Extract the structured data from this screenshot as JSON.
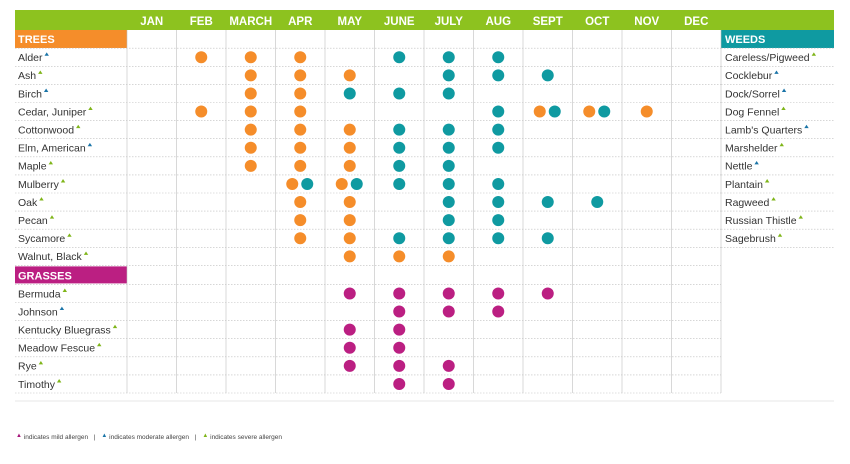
{
  "chart_data": {
    "type": "table",
    "title": "",
    "months": [
      "JAN",
      "FEB",
      "MARCH",
      "APR",
      "MAY",
      "JUNE",
      "JULY",
      "AUG",
      "SEPT",
      "OCT",
      "NOV",
      "DEC"
    ],
    "colors": {
      "header_green": "#8dc21f",
      "trees": "#f58d2a",
      "weeds": "#0f9aa1",
      "grasses": "#bb1f82",
      "mild": "#a5157a",
      "moderate": "#1b75a8",
      "severe": "#7fb519"
    },
    "trees": {
      "label": "TREES",
      "rows": [
        {
          "name": "Alder",
          "severity": "moderate",
          "dots": [
            {
              "m": "FEB",
              "c": "trees"
            },
            {
              "m": "MARCH",
              "c": "trees"
            },
            {
              "m": "APR",
              "c": "trees"
            },
            {
              "m": "JUNE",
              "c": "weeds"
            },
            {
              "m": "JULY",
              "c": "weeds"
            },
            {
              "m": "AUG",
              "c": "weeds"
            }
          ]
        },
        {
          "name": "Ash",
          "severity": "severe",
          "dots": [
            {
              "m": "MARCH",
              "c": "trees"
            },
            {
              "m": "APR",
              "c": "trees"
            },
            {
              "m": "MAY",
              "c": "trees"
            },
            {
              "m": "JULY",
              "c": "weeds"
            },
            {
              "m": "AUG",
              "c": "weeds"
            },
            {
              "m": "SEPT",
              "c": "weeds"
            }
          ]
        },
        {
          "name": "Birch",
          "severity": "moderate",
          "dots": [
            {
              "m": "MARCH",
              "c": "trees"
            },
            {
              "m": "APR",
              "c": "trees"
            },
            {
              "m": "MAY",
              "c": "weeds"
            },
            {
              "m": "JUNE",
              "c": "weeds"
            },
            {
              "m": "JULY",
              "c": "weeds"
            }
          ]
        },
        {
          "name": "Cedar, Juniper",
          "severity": "severe",
          "dots": [
            {
              "m": "FEB",
              "c": "trees"
            },
            {
              "m": "MARCH",
              "c": "trees"
            },
            {
              "m": "APR",
              "c": "trees"
            },
            {
              "m": "AUG",
              "c": "weeds"
            },
            {
              "m": "SEPT",
              "c": "trees",
              "o": -8
            },
            {
              "m": "SEPT",
              "c": "weeds",
              "o": 7
            },
            {
              "m": "OCT",
              "c": "trees",
              "o": -8
            },
            {
              "m": "OCT",
              "c": "weeds",
              "o": 7
            },
            {
              "m": "NOV",
              "c": "trees"
            }
          ]
        },
        {
          "name": "Cottonwood",
          "severity": "severe",
          "dots": [
            {
              "m": "MARCH",
              "c": "trees"
            },
            {
              "m": "APR",
              "c": "trees"
            },
            {
              "m": "MAY",
              "c": "trees"
            },
            {
              "m": "JUNE",
              "c": "weeds"
            },
            {
              "m": "JULY",
              "c": "weeds"
            },
            {
              "m": "AUG",
              "c": "weeds"
            }
          ]
        },
        {
          "name": "Elm, American",
          "severity": "moderate",
          "dots": [
            {
              "m": "MARCH",
              "c": "trees"
            },
            {
              "m": "APR",
              "c": "trees"
            },
            {
              "m": "MAY",
              "c": "trees"
            },
            {
              "m": "JUNE",
              "c": "weeds"
            },
            {
              "m": "JULY",
              "c": "weeds"
            },
            {
              "m": "AUG",
              "c": "weeds"
            }
          ]
        },
        {
          "name": "Maple",
          "severity": "severe",
          "dots": [
            {
              "m": "MARCH",
              "c": "trees"
            },
            {
              "m": "APR",
              "c": "trees"
            },
            {
              "m": "MAY",
              "c": "trees"
            },
            {
              "m": "JUNE",
              "c": "weeds"
            },
            {
              "m": "JULY",
              "c": "weeds"
            }
          ]
        },
        {
          "name": "Mulberry",
          "severity": "severe",
          "dots": [
            {
              "m": "APR",
              "c": "trees",
              "o": -8
            },
            {
              "m": "APR",
              "c": "weeds",
              "o": 7
            },
            {
              "m": "MAY",
              "c": "trees",
              "o": -8
            },
            {
              "m": "MAY",
              "c": "weeds",
              "o": 7
            },
            {
              "m": "JUNE",
              "c": "weeds"
            },
            {
              "m": "JULY",
              "c": "weeds"
            },
            {
              "m": "AUG",
              "c": "weeds"
            }
          ]
        },
        {
          "name": "Oak",
          "severity": "severe",
          "dots": [
            {
              "m": "APR",
              "c": "trees"
            },
            {
              "m": "MAY",
              "c": "trees"
            },
            {
              "m": "JULY",
              "c": "weeds"
            },
            {
              "m": "AUG",
              "c": "weeds"
            },
            {
              "m": "SEPT",
              "c": "weeds"
            },
            {
              "m": "OCT",
              "c": "weeds"
            }
          ]
        },
        {
          "name": "Pecan",
          "severity": "severe",
          "dots": [
            {
              "m": "APR",
              "c": "trees"
            },
            {
              "m": "MAY",
              "c": "trees"
            },
            {
              "m": "JULY",
              "c": "weeds"
            },
            {
              "m": "AUG",
              "c": "weeds"
            }
          ]
        },
        {
          "name": "Sycamore",
          "severity": "severe",
          "dots": [
            {
              "m": "APR",
              "c": "trees"
            },
            {
              "m": "MAY",
              "c": "trees"
            },
            {
              "m": "JUNE",
              "c": "weeds"
            },
            {
              "m": "JULY",
              "c": "weeds"
            },
            {
              "m": "AUG",
              "c": "weeds"
            },
            {
              "m": "SEPT",
              "c": "weeds"
            }
          ]
        },
        {
          "name": "Walnut, Black",
          "severity": "severe",
          "dots": [
            {
              "m": "MAY",
              "c": "trees"
            },
            {
              "m": "JUNE",
              "c": "trees"
            },
            {
              "m": "JULY",
              "c": "trees"
            }
          ]
        }
      ]
    },
    "grasses": {
      "label": "GRASSES",
      "rows": [
        {
          "name": "Bermuda",
          "severity": "severe",
          "dots": [
            {
              "m": "MAY",
              "c": "grasses"
            },
            {
              "m": "JUNE",
              "c": "grasses"
            },
            {
              "m": "JULY",
              "c": "grasses"
            },
            {
              "m": "AUG",
              "c": "grasses"
            },
            {
              "m": "SEPT",
              "c": "grasses"
            }
          ]
        },
        {
          "name": "Johnson",
          "severity": "moderate",
          "dots": [
            {
              "m": "JUNE",
              "c": "grasses"
            },
            {
              "m": "JULY",
              "c": "grasses"
            },
            {
              "m": "AUG",
              "c": "grasses"
            }
          ]
        },
        {
          "name": "Kentucky Bluegrass",
          "severity": "severe",
          "dots": [
            {
              "m": "MAY",
              "c": "grasses"
            },
            {
              "m": "JUNE",
              "c": "grasses"
            }
          ]
        },
        {
          "name": "Meadow Fescue",
          "severity": "severe",
          "dots": [
            {
              "m": "MAY",
              "c": "grasses"
            },
            {
              "m": "JUNE",
              "c": "grasses"
            }
          ]
        },
        {
          "name": "Rye",
          "severity": "severe",
          "dots": [
            {
              "m": "MAY",
              "c": "grasses"
            },
            {
              "m": "JUNE",
              "c": "grasses"
            },
            {
              "m": "JULY",
              "c": "grasses"
            }
          ]
        },
        {
          "name": "Timothy",
          "severity": "severe",
          "dots": [
            {
              "m": "JUNE",
              "c": "grasses"
            },
            {
              "m": "JULY",
              "c": "grasses"
            }
          ]
        }
      ]
    },
    "weeds": {
      "label": "WEEDS",
      "items": [
        {
          "name": "Careless/Pigweed",
          "severity": "severe"
        },
        {
          "name": "Cocklebur",
          "severity": "moderate"
        },
        {
          "name": "Dock/Sorrel",
          "severity": "moderate"
        },
        {
          "name": "Dog Fennel",
          "severity": "severe"
        },
        {
          "name": "Lamb's Quarters",
          "severity": "moderate"
        },
        {
          "name": "Marshelder",
          "severity": "severe"
        },
        {
          "name": "Nettle",
          "severity": "moderate"
        },
        {
          "name": "Plantain",
          "severity": "severe"
        },
        {
          "name": "Ragweed",
          "severity": "severe"
        },
        {
          "name": "Russian Thistle",
          "severity": "severe"
        },
        {
          "name": "Sagebrush",
          "severity": "severe"
        }
      ]
    },
    "legend": {
      "mild": "indicates mild allergen",
      "moderate": "indicates moderate allergen",
      "severe": "indicates severe allergen",
      "separator": "|",
      "marker": "▲"
    }
  }
}
